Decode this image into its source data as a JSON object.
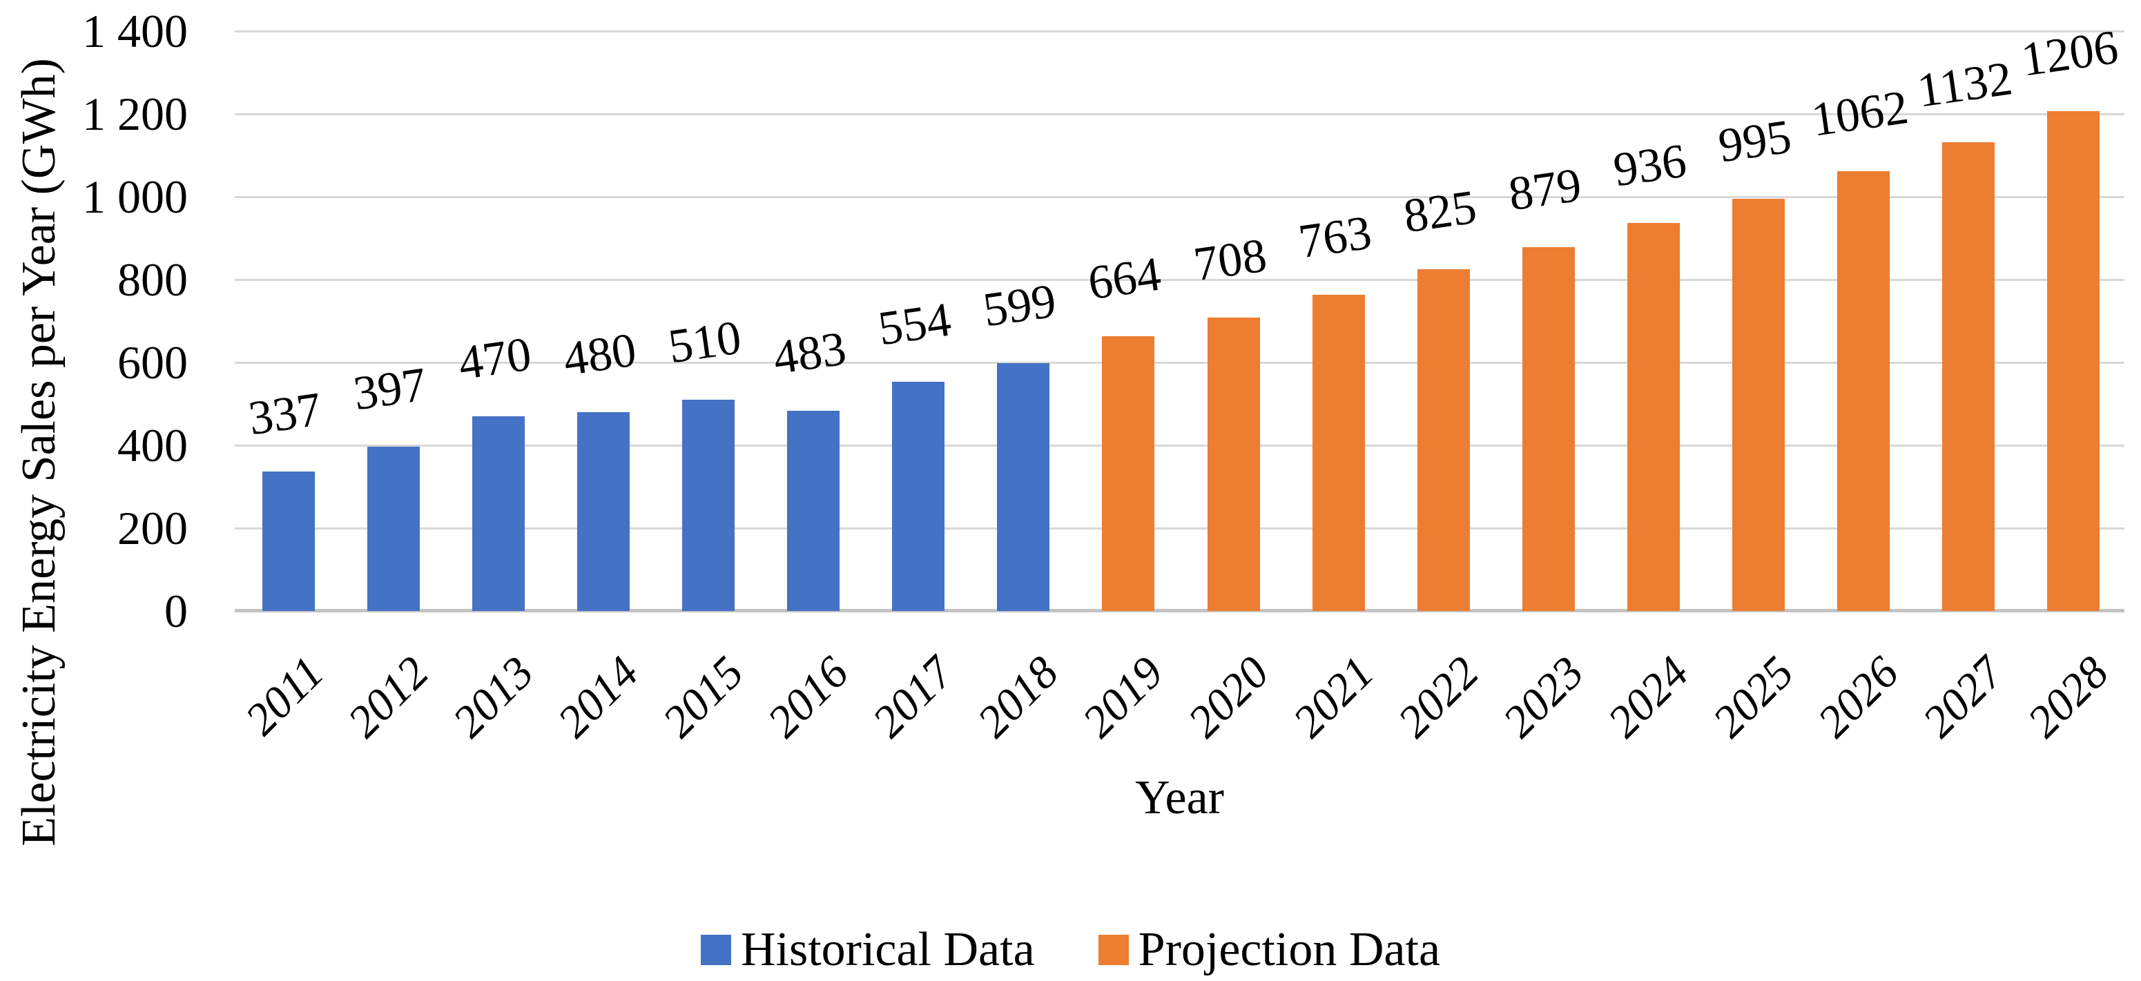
{
  "chart_data": {
    "type": "bar",
    "title": "",
    "xlabel": "Year",
    "ylabel": "Electricity Energy Sales per Year (GWh)",
    "ylim": [
      0,
      1400
    ],
    "ytick_interval": 200,
    "ytick_labels": [
      "0",
      "200",
      "400",
      "600",
      "800",
      "1 000",
      "1 200",
      "1 400"
    ],
    "grid": "horizontal",
    "legend_position": "bottom",
    "value_labels_shown": true,
    "value_label_rotation_deg": -8,
    "xtick_rotation_deg": -45,
    "categories": [
      "2011",
      "2012",
      "2013",
      "2014",
      "2015",
      "2016",
      "2017",
      "2018",
      "2019",
      "2020",
      "2021",
      "2022",
      "2023",
      "2024",
      "2025",
      "2026",
      "2027",
      "2028"
    ],
    "series": [
      {
        "name": "Historical Data",
        "color": "#4472C4",
        "start_index": 0,
        "values": [
          337,
          397,
          470,
          480,
          510,
          483,
          554,
          599
        ]
      },
      {
        "name": "Projection Data",
        "color": "#ED7D31",
        "start_index": 8,
        "values": [
          664,
          708,
          763,
          825,
          879,
          936,
          995,
          1062,
          1132,
          1206
        ]
      }
    ],
    "colors": {
      "grid": "#D8D8D8",
      "axis_line": "#C3C3C3",
      "text": "#000000",
      "background": "#FFFFFF"
    }
  }
}
